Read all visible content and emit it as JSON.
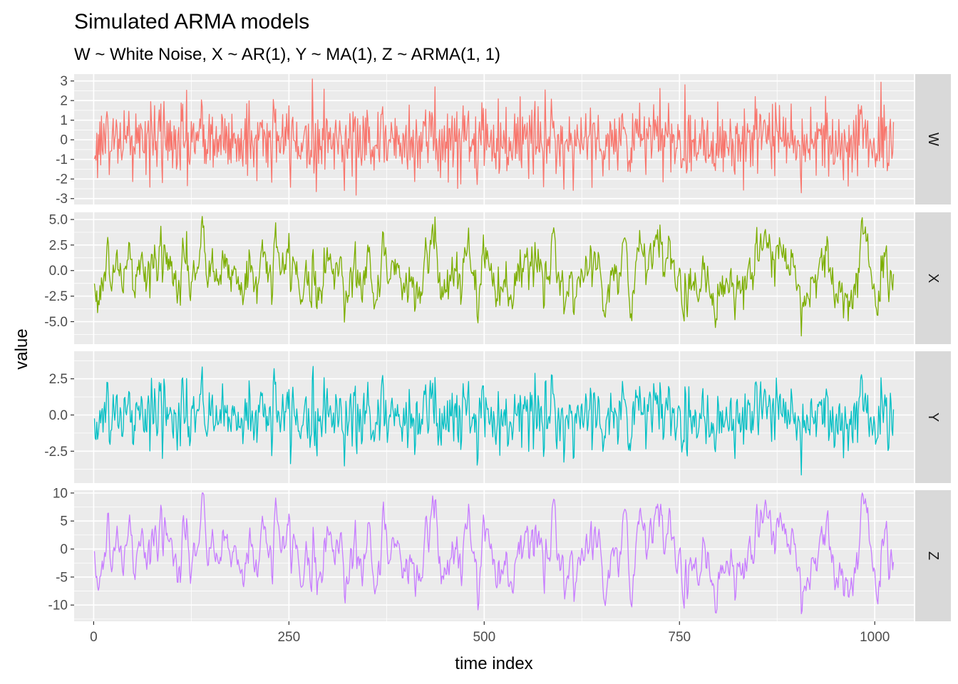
{
  "chart_data": {
    "type": "line",
    "title": "Simulated ARMA models",
    "subtitle": "W ~ White Noise, X ~ AR(1), Y ~ MA(1), Z ~ ARMA(1, 1)",
    "xlabel": "time index",
    "ylabel": "value",
    "xlim": [
      -25,
      1050
    ],
    "x_ticks": [
      0,
      250,
      500,
      750,
      1000
    ],
    "x_tick_labels": [
      "0",
      "250",
      "500",
      "750",
      "1000"
    ],
    "n_points": 1024,
    "grid": true,
    "facet_strip_position": "right",
    "panels": [
      {
        "name": "W",
        "color": "#F8766D",
        "model": "white-noise",
        "ylim": [
          -3.3,
          3.35
        ],
        "y_ticks": [
          -3,
          -2,
          -1,
          0,
          1,
          2,
          3
        ],
        "y_tick_labels": [
          "-3",
          "-2",
          "-1",
          "0",
          "1",
          "2",
          "3"
        ]
      },
      {
        "name": "X",
        "color": "#7CAE00",
        "model": "ar1",
        "ylim": [
          -7.2,
          5.7
        ],
        "y_ticks": [
          -5,
          -2.5,
          0,
          2.5,
          5
        ],
        "y_tick_labels": [
          "-5.0",
          "-2.5",
          "0.0",
          "2.5",
          "5.0"
        ]
      },
      {
        "name": "Y",
        "color": "#00BFC4",
        "model": "ma1",
        "ylim": [
          -4.7,
          4.4
        ],
        "y_ticks": [
          -2.5,
          0,
          2.5
        ],
        "y_tick_labels": [
          "-2.5",
          "0.0",
          "2.5"
        ]
      },
      {
        "name": "Z",
        "color": "#C77CFF",
        "model": "arma11",
        "ylim": [
          -12.9,
          10.5
        ],
        "y_ticks": [
          -10,
          -5,
          0,
          5,
          10
        ],
        "y_tick_labels": [
          "-10",
          "-5",
          "0",
          "5",
          "10"
        ]
      }
    ]
  }
}
